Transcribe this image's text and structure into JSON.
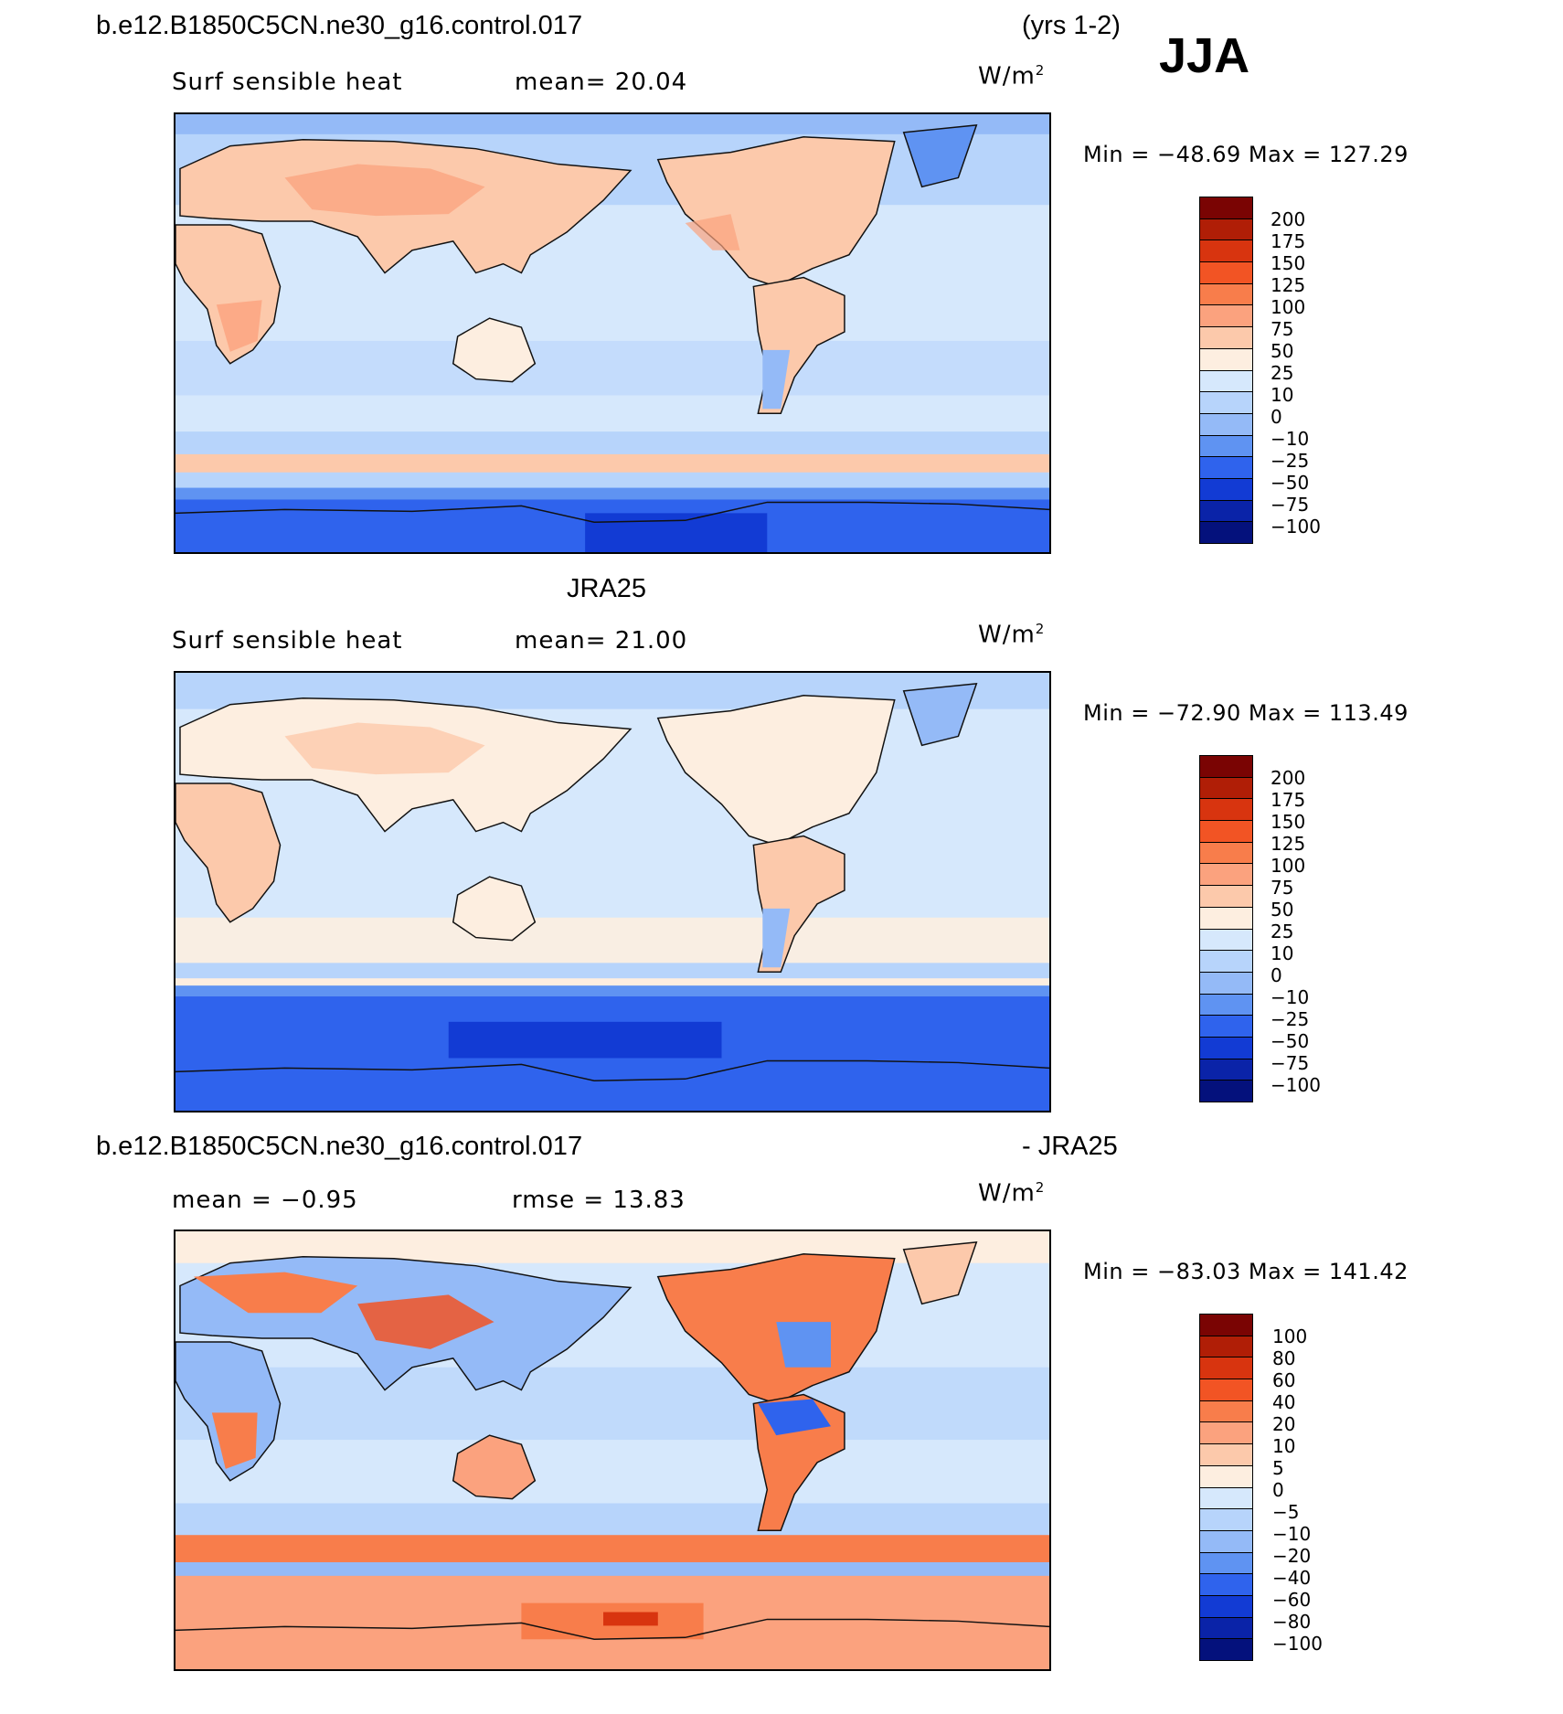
{
  "header": {
    "case_title": "b.e12.B1850C5CN.ne30_g16.control.017",
    "years": "(yrs 1-2)",
    "season": "JJA"
  },
  "panel1": {
    "variable": "Surf sensible heat",
    "mean": "mean=   20.04",
    "units": "W/m",
    "units_sup": "2",
    "minmax": "Min  =  −48.69  Max  =  127.29",
    "colorbar_levels": [
      "200",
      "175",
      "150",
      "125",
      "100",
      "75",
      "50",
      "25",
      "10",
      "0",
      "−10",
      "−25",
      "−50",
      "−75",
      "−100"
    ]
  },
  "panel2": {
    "title": "JRA25",
    "variable": "Surf sensible heat",
    "mean": "mean=   21.00",
    "units": "W/m",
    "units_sup": "2",
    "minmax": "Min  =  −72.90  Max  =  113.49",
    "colorbar_levels": [
      "200",
      "175",
      "150",
      "125",
      "100",
      "75",
      "50",
      "25",
      "10",
      "0",
      "−10",
      "−25",
      "−50",
      "−75",
      "−100"
    ]
  },
  "panel3": {
    "title_left": "b.e12.B1850C5CN.ne30_g16.control.017",
    "title_right": "- JRA25",
    "mean": "mean  =    −0.95",
    "rmse": "rmse  =    13.83",
    "units": "W/m",
    "units_sup": "2",
    "minmax": "Min  =  −83.03  Max  =  141.42",
    "colorbar_levels": [
      "100",
      "80",
      "60",
      "40",
      "20",
      "10",
      "5",
      "0",
      "−5",
      "−10",
      "−20",
      "−40",
      "−60",
      "−80",
      "−100"
    ]
  },
  "colors": {
    "palette": [
      "#7a0403",
      "#b01e06",
      "#d8340f",
      "#f25424",
      "#f87d4b",
      "#fba27e",
      "#fcc9ab",
      "#fdeee0",
      "#d6e8fc",
      "#b7d4fb",
      "#94baf7",
      "#5f93f2",
      "#2f63ed",
      "#123bd4",
      "#0a23a8",
      "#04117c"
    ],
    "ocean": "#d6e8fc",
    "coast": "#111111"
  }
}
